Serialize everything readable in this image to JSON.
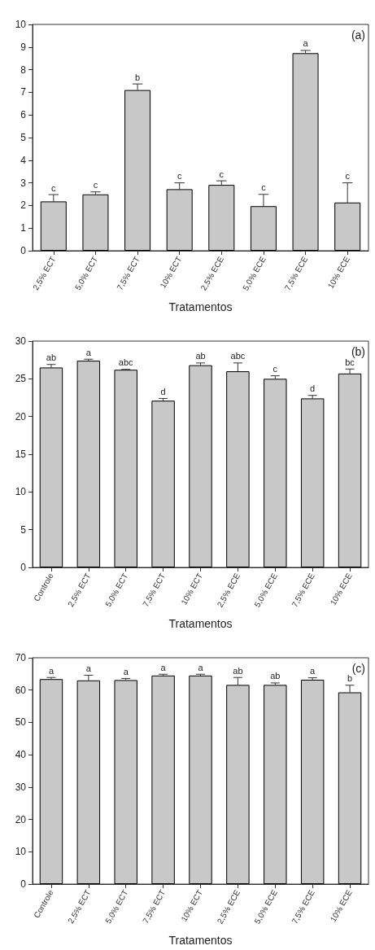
{
  "chart_data": [
    {
      "type": "bar",
      "categories": [
        "2,5% ECT",
        "5,0% ECT",
        "7,5% ECT",
        "10% ECT",
        "2,5% ECE",
        "5,0% ECE",
        "7,5% ECE",
        "10% ECE"
      ],
      "series": [
        {
          "color": "#c8c8c8",
          "values": [
            2.18,
            2.49,
            7.1,
            2.72,
            2.91,
            1.97,
            8.73,
            2.13
          ],
          "errors": [
            [
              2.18,
              2.48
            ],
            [
              2.49,
              2.6
            ],
            [
              7.1,
              7.37
            ],
            [
              2.72,
              3.0
            ],
            [
              2.91,
              3.09
            ],
            [
              1.97,
              2.49
            ],
            [
              8.73,
              8.85
            ],
            [
              2.13,
              3.0
            ]
          ]
        }
      ],
      "ylim": [
        0,
        10
      ],
      "yticks": [
        0,
        1,
        2,
        3,
        4,
        5,
        6,
        7,
        8,
        9,
        10
      ],
      "xlabel": "Tratamentos",
      "annotations": [
        "(a)",
        {
          "text": "c",
          "x": "2,5% ECT",
          "y": 2.48
        },
        {
          "text": "c",
          "x": "5,0% ECT",
          "y": 2.6
        },
        {
          "text": "b",
          "x": "7,5% ECT",
          "y": 7.37
        },
        {
          "text": "c",
          "x": "10% ECT",
          "y": 3.0
        },
        {
          "text": "c",
          "x": "2,5% ECE",
          "y": 3.09
        },
        {
          "text": "c",
          "x": "5,0% ECE",
          "y": 2.49
        },
        {
          "text": "a",
          "x": "7,5% ECE",
          "y": 8.85
        },
        {
          "text": "c",
          "x": "10% ECE",
          "y": 3.0
        }
      ]
    },
    {
      "type": "bar",
      "categories": [
        "Controle",
        "2,5% ECT",
        "5,0% ECT",
        "7,5% ECT",
        "10% ECT",
        "2,5% ECE",
        "5,0% ECE",
        "7,5% ECE",
        "10% ECE"
      ],
      "series": [
        {
          "color": "#c8c8c8",
          "values": [
            26.5,
            27.4,
            26.2,
            22.1,
            26.8,
            26.0,
            25.0,
            22.4,
            25.7
          ],
          "errors": [
            [
              26.5,
              26.9
            ],
            [
              27.4,
              27.6
            ],
            [
              26.2,
              26.25
            ],
            [
              22.1,
              22.4
            ],
            [
              26.8,
              27.1
            ],
            [
              26.0,
              27.1
            ],
            [
              25.0,
              25.4
            ],
            [
              22.4,
              22.8
            ],
            [
              25.7,
              26.3
            ]
          ]
        }
      ],
      "ylim": [
        0,
        30
      ],
      "yticks": [
        0,
        5,
        10,
        15,
        20,
        25,
        30
      ],
      "xlabel": "Tratamentos",
      "annotations": [
        "(b)",
        {
          "text": "ab",
          "x": "Controle",
          "y": 26.9
        },
        {
          "text": "a",
          "x": "2,5% ECT",
          "y": 27.6
        },
        {
          "text": "abc",
          "x": "5,0% ECT",
          "y": 26.25
        },
        {
          "text": "d",
          "x": "7,5% ECT",
          "y": 22.4
        },
        {
          "text": "ab",
          "x": "10% ECT",
          "y": 27.1
        },
        {
          "text": "abc",
          "x": "2,5% ECE",
          "y": 27.1
        },
        {
          "text": "c",
          "x": "5,0% ECE",
          "y": 25.4
        },
        {
          "text": "d",
          "x": "7,5% ECE",
          "y": 22.8
        },
        {
          "text": "bc",
          "x": "10% ECE",
          "y": 26.3
        }
      ]
    },
    {
      "type": "bar",
      "categories": [
        "Controle",
        "2,5% ECT",
        "5,0% ECT",
        "7,5% ECT",
        "10% ECT",
        "2,5% ECE",
        "5,0% ECE",
        "7,5% ECE",
        "10% ECE"
      ],
      "series": [
        {
          "color": "#c8c8c8",
          "values": [
            63.4,
            63.0,
            63.1,
            64.5,
            64.5,
            61.6,
            61.6,
            63.2,
            59.3
          ],
          "errors": [
            [
              63.4,
              63.9
            ],
            [
              63.0,
              64.6
            ],
            [
              63.1,
              63.6
            ],
            [
              64.5,
              64.9
            ],
            [
              64.5,
              64.9
            ],
            [
              61.6,
              63.9
            ],
            [
              61.6,
              62.2
            ],
            [
              63.2,
              63.8
            ],
            [
              59.3,
              61.5
            ]
          ]
        }
      ],
      "ylim": [
        0,
        70
      ],
      "yticks": [
        0,
        10,
        20,
        30,
        40,
        50,
        60,
        70
      ],
      "xlabel": "Tratamentos",
      "annotations": [
        "(c)",
        {
          "text": "a",
          "x": "Controle",
          "y": 63.9
        },
        {
          "text": "a",
          "x": "2,5% ECT",
          "y": 64.6
        },
        {
          "text": "a",
          "x": "5,0% ECT",
          "y": 63.6
        },
        {
          "text": "a",
          "x": "7,5% ECT",
          "y": 64.9
        },
        {
          "text": "a",
          "x": "10% ECT",
          "y": 64.9
        },
        {
          "text": "ab",
          "x": "2,5% ECE",
          "y": 63.9
        },
        {
          "text": "ab",
          "x": "5,0% ECE",
          "y": 62.2
        },
        {
          "text": "a",
          "x": "7,5% ECE",
          "y": 63.8
        },
        {
          "text": "b",
          "x": "10% ECE",
          "y": 61.5
        }
      ]
    }
  ]
}
